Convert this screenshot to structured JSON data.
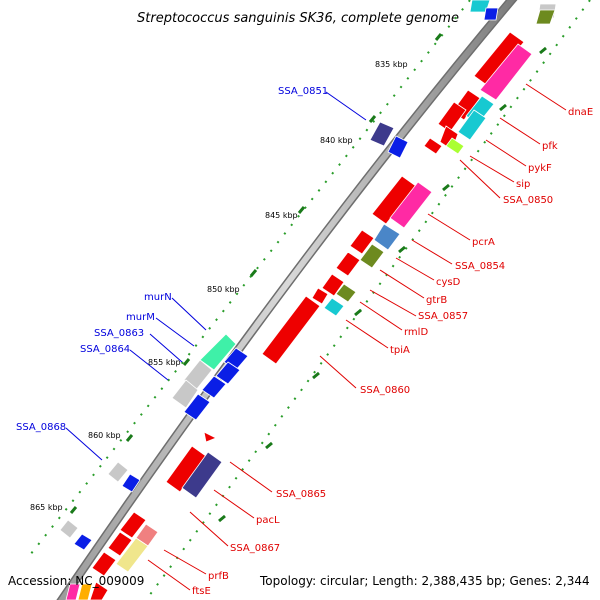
{
  "title": "Streptococcus sanguinis SK36, complete genome",
  "footer": {
    "accession": "Accession: NC_009009",
    "summary": "Topology: circular; Length: 2,388,435 bp; Genes: 2,344"
  },
  "scale_labels": [
    "835 kbp",
    "840 kbp",
    "845 kbp",
    "850 kbp",
    "855 kbp",
    "860 kbp",
    "865 kbp"
  ],
  "gene_labels_right": [
    "dnaE",
    "pfk",
    "pykF",
    "sip",
    "SSA_0850",
    "pcrA",
    "SSA_0854",
    "cysD",
    "gtrB",
    "SSA_0857",
    "rmlD",
    "tpiA",
    "SSA_0860",
    "SSA_0865",
    "pacL",
    "SSA_0867",
    "prfB",
    "ftsE"
  ],
  "gene_labels_left": [
    "SSA_0851",
    "murN",
    "murM",
    "SSA_0863",
    "SSA_0864",
    "SSA_0868"
  ],
  "colors": {
    "red": "#ee0000",
    "magenta": "#ff2aa4",
    "cyan": "#17c9d1",
    "lime": "#aaff33",
    "olive": "#6d8a1f",
    "steelblue": "#4a86c8",
    "navy": "#3d3a8c",
    "blue": "#0a1ee6",
    "gray": "#c8c8c8",
    "mint": "#3ff0a8",
    "khaki": "#f0e68c",
    "pink": "#f08080",
    "backbone": "#7a7a7a",
    "label_red": "#e00000",
    "label_blue": "#0000dd"
  }
}
